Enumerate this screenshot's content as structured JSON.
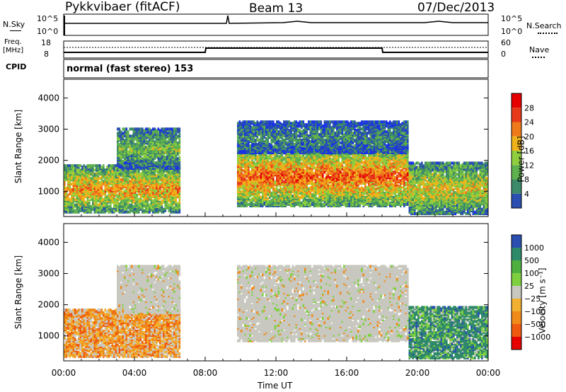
{
  "header": {
    "station": "Pykkvibaer (fitACF)",
    "beam": "Beam 13",
    "date": "07/Dec/2013"
  },
  "sky_panel": {
    "left_label": "N.Sky",
    "left_ticks": [
      "10^5",
      "10^0"
    ],
    "right_ticks": [
      "10^5",
      "10^0"
    ],
    "right_label": "N.Search"
  },
  "freq_panel": {
    "left_label_1": "Freq.",
    "left_label_2": "[MHz]",
    "left_ticks": [
      "18",
      "8"
    ],
    "right_ticks": [
      "60",
      "0"
    ],
    "right_label": "Nave"
  },
  "cpid": {
    "label": "CPID",
    "text": "normal (fast stereo) 153"
  },
  "colors": {
    "power": [
      "#1a33e6",
      "#2a4fb0",
      "#3d8a6a",
      "#5fb04e",
      "#8fcf3f",
      "#f0b21a",
      "#ef7a1a",
      "#e63a1a",
      "#e60000"
    ],
    "velocity_neg": [
      "#e60000",
      "#ef5a10",
      "#f08a18",
      "#f2b030"
    ],
    "velocity_mid": "#c8c8c0",
    "velocity_pos": [
      "#7fd040",
      "#4fb040",
      "#2f8a6a",
      "#2a4fb0"
    ]
  },
  "chart_data": [
    {
      "type": "heatmap",
      "title": "Power",
      "ylabel": "Slant Range [km]",
      "xlabel": "",
      "x_tick_labels": [
        "00:00",
        "04:00",
        "08:00",
        "12:00",
        "16:00",
        "20:00",
        "00:00"
      ],
      "y_tick_labels": [
        "1000",
        "2000",
        "3000",
        "4000"
      ],
      "ylim": [
        200,
        4600
      ],
      "colorbar": {
        "label": "Power [dB]",
        "ticks": [
          "28",
          "24",
          "20",
          "16",
          "12",
          "8",
          "4"
        ]
      },
      "regions": [
        {
          "t0": 0.0,
          "t1": 6.5,
          "r0": 300,
          "r1": 1800,
          "level": 0.7
        },
        {
          "t0": 3.0,
          "t1": 6.5,
          "r0": 1700,
          "r1": 3000,
          "level": 0.45
        },
        {
          "t0": 9.8,
          "t1": 19.5,
          "r0": 500,
          "r1": 2400,
          "level": 0.8
        },
        {
          "t0": 9.8,
          "t1": 19.5,
          "r0": 2200,
          "r1": 3200,
          "level": 0.3
        },
        {
          "t0": 19.5,
          "t1": 24.0,
          "r0": 250,
          "r1": 1900,
          "level": 0.6
        }
      ]
    },
    {
      "type": "heatmap",
      "title": "Velocity",
      "ylabel": "Slant Range [km]",
      "xlabel": "Time UT",
      "x_tick_labels": [
        "00:00",
        "04:00",
        "08:00",
        "12:00",
        "16:00",
        "20:00",
        "00:00"
      ],
      "y_tick_labels": [
        "1000",
        "2000",
        "3000",
        "4000"
      ],
      "ylim": [
        200,
        4600
      ],
      "colorbar": {
        "label": "Velocity [m s⁻¹]",
        "ticks": [
          "1000",
          "500",
          "100",
          "25",
          "−25",
          "−100",
          "−500",
          "−1000"
        ]
      },
      "regions": [
        {
          "t0": 0.0,
          "t1": 6.5,
          "r0": 300,
          "r1": 1800,
          "level": "negative"
        },
        {
          "t0": 3.0,
          "t1": 6.5,
          "r0": 1700,
          "r1": 3200,
          "level": "near-zero"
        },
        {
          "t0": 9.8,
          "t1": 19.5,
          "r0": 800,
          "r1": 3200,
          "level": "near-zero"
        },
        {
          "t0": 19.5,
          "t1": 24.0,
          "r0": 250,
          "r1": 1900,
          "level": "positive"
        }
      ]
    }
  ]
}
